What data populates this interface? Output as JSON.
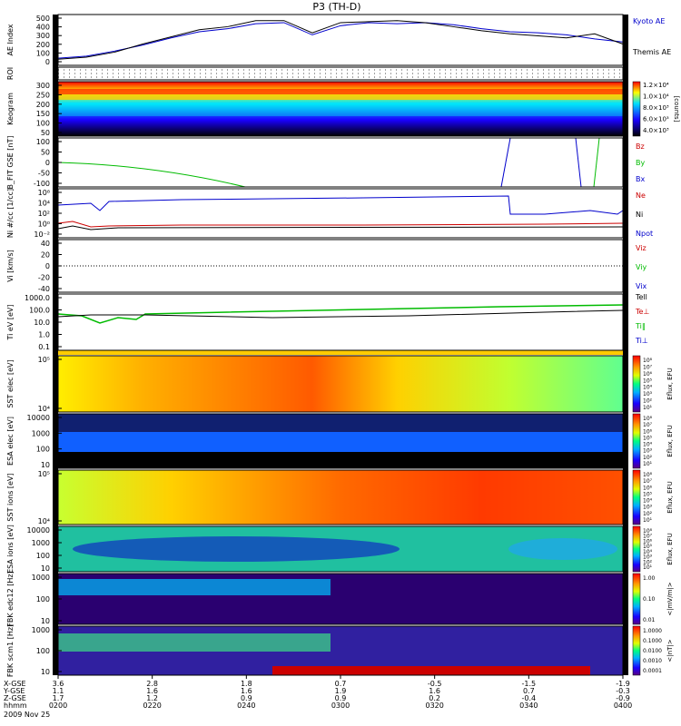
{
  "title": "P3 (TH-D)",
  "colors": {
    "blue": "#0000cc",
    "red": "#cc0000",
    "green": "#00bb00",
    "black": "#000000"
  },
  "chart_data": {
    "type": "multi-panel time series / spectrogram",
    "time_axis": {
      "tick_labels": [
        "0200",
        "0220",
        "0240",
        "0300",
        "0320",
        "0340",
        "0400"
      ],
      "x_gse": [
        "3.6",
        "2.8",
        "1.8",
        "0.7",
        "-0.5",
        "-1.5",
        "-1.9"
      ],
      "y_gse": [
        "1.1",
        "1.6",
        "1.6",
        "1.9",
        "1.6",
        "0.7",
        "-0.3"
      ],
      "z_gse": [
        "1.7",
        "1.2",
        "0.9",
        "0.9",
        "0.2",
        "-0.4",
        "-0.9"
      ],
      "row_labels": [
        "X-GSE",
        "Y-GSE",
        "Z-GSE",
        "hhmm"
      ],
      "date": "2009 Nov 25"
    },
    "panels": [
      {
        "id": "ae",
        "label": "AE Index",
        "ticks": [
          "500",
          "400",
          "300",
          "200",
          "100",
          "0"
        ],
        "ylim": [
          0,
          500
        ],
        "legend": [
          "Kyoto AE",
          "Themis AE"
        ],
        "series": [
          {
            "name": "Kyoto AE",
            "color": "#0000cc",
            "values": [
              70,
              90,
              140,
              200,
              270,
              330,
              360,
              410,
              420,
              300,
              390,
              420,
              410,
              420,
              400,
              360,
              330,
              320,
              300,
              260,
              230
            ]
          },
          {
            "name": "Themis AE",
            "color": "#000000",
            "values": [
              60,
              80,
              130,
              210,
              280,
              350,
              380,
              440,
              440,
              320,
              420,
              430,
              440,
              420,
              380,
              340,
              310,
              290,
              270,
              310,
              210
            ]
          }
        ]
      },
      {
        "id": "roi",
        "label": "ROI",
        "ticks": []
      },
      {
        "id": "keogram",
        "label": "Keogram",
        "ticks": [
          "300",
          "250",
          "200",
          "150",
          "100",
          "50"
        ],
        "colorbar_label": "[counts]",
        "colorbar_ticks": [
          "1.2×10⁴",
          "1.0×10⁴",
          "8.0×10³",
          "6.0×10³",
          "4.0×10³"
        ]
      },
      {
        "id": "bfit",
        "label": "B_FIT GSE [nT]",
        "ticks": [
          "100",
          "50",
          "0",
          "-50",
          "-100"
        ],
        "legend": [
          "Bz",
          "By",
          "Bx"
        ]
      },
      {
        "id": "ni",
        "label": "Ni #/cc [1/cc]",
        "ticks": [
          "10⁸",
          "10⁴",
          "10²",
          "10⁰",
          "10⁻²"
        ],
        "legend": [
          "Ne",
          "Ni",
          "Npot"
        ]
      },
      {
        "id": "vi",
        "label": "Vi [km/s]",
        "ticks": [
          "40",
          "20",
          "0",
          "-20",
          "-40"
        ],
        "legend": [
          "Viz",
          "Viy",
          "Vix"
        ]
      },
      {
        "id": "ti",
        "label": "Ti eV [eV]",
        "ticks": [
          "1000.0",
          "100.0",
          "10.0",
          "1.0",
          "0.1"
        ],
        "legend": [
          "Tell",
          "Te⊥",
          "Ti‖",
          "Ti⊥"
        ]
      },
      {
        "id": "sst_e",
        "label": "SST elec [eV]",
        "ticks": [
          "10⁵",
          "10⁴"
        ]
      },
      {
        "id": "esa_e",
        "label": "ESA elec [eV]",
        "ticks": [
          "10000",
          "1000",
          "100",
          "10"
        ]
      },
      {
        "id": "sst_i",
        "label": "SST ions [eV]",
        "ticks": [
          "10⁵",
          "10⁴"
        ]
      },
      {
        "id": "esa_i",
        "label": "ESA ions [eV]",
        "ticks": [
          "10000",
          "1000",
          "100",
          "10"
        ]
      },
      {
        "id": "fbk1",
        "label": "FBK edc12 [Hz]",
        "ticks": [
          "1000",
          "100",
          "10"
        ]
      },
      {
        "id": "fbk2",
        "label": "FBK scm1 [Hz]",
        "ticks": [
          "1000",
          "100",
          "10"
        ]
      }
    ],
    "colorbars": [
      {
        "label": "Eflux, EFU",
        "ticks": [
          "10⁸",
          "10⁷",
          "10⁶",
          "10⁵",
          "10⁴",
          "10³",
          "10²",
          "10¹"
        ]
      },
      {
        "label": "Eflux, EFU",
        "ticks": [
          "10⁸",
          "10⁷",
          "10⁶",
          "10⁵",
          "10⁴",
          "10³",
          "10²",
          "10¹"
        ]
      },
      {
        "label": "Eflux, EFU",
        "ticks": [
          "10⁸",
          "10⁷",
          "10⁶",
          "10⁵",
          "10⁴",
          "10³",
          "10²",
          "10¹"
        ]
      },
      {
        "label": "Eflux, EFU",
        "ticks": [
          "10⁸",
          "10⁷",
          "10⁶",
          "10⁵",
          "10⁴",
          "10³",
          "10²",
          "10¹"
        ]
      },
      {
        "label": "<|mV/m|>",
        "ticks": [
          "1.00",
          "0.10",
          "0.01"
        ]
      },
      {
        "label": "<|nT|>",
        "ticks": [
          "1.0000",
          "0.1000",
          "0.0100",
          "0.0010",
          "0.0001"
        ]
      }
    ]
  }
}
